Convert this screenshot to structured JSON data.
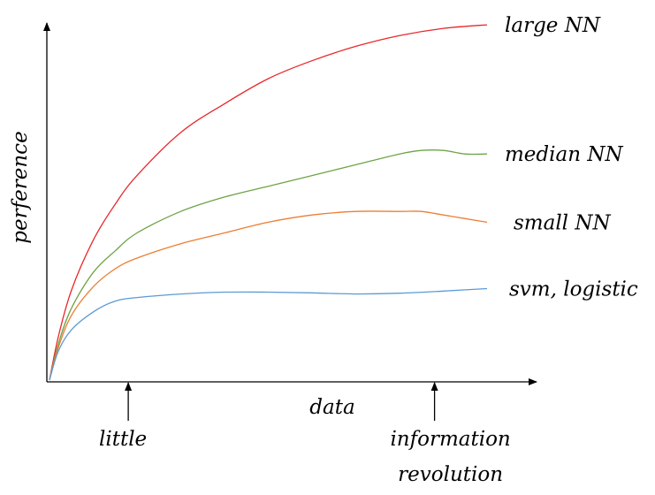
{
  "chart_data": {
    "type": "line",
    "title": "",
    "xlabel": "data",
    "ylabel": "perference",
    "xlim": [
      0,
      100
    ],
    "ylim": [
      0,
      100
    ],
    "grid": false,
    "legend": "none",
    "x_annotations": [
      {
        "label": "little",
        "x": 18
      },
      {
        "label_lines": [
          "information",
          "revolution"
        ],
        "x": 88
      }
    ],
    "series": [
      {
        "name": "large NN",
        "color": "#e8282b",
        "x": [
          0,
          2,
          5,
          10,
          15,
          20,
          30,
          40,
          50,
          60,
          70,
          80,
          90,
          100
        ],
        "y": [
          0,
          12,
          25,
          39,
          49,
          57,
          69,
          77,
          84,
          89,
          93,
          96,
          98,
          99
        ]
      },
      {
        "name": "median NN",
        "color": "#6ea346",
        "x": [
          0,
          2,
          5,
          10,
          15,
          20,
          30,
          40,
          50,
          60,
          70,
          80,
          85,
          90,
          95,
          100
        ],
        "y": [
          0,
          10,
          20,
          30,
          36,
          41,
          47,
          51,
          54,
          57,
          60,
          63,
          64,
          64,
          63,
          63
        ]
      },
      {
        "name": "small NN",
        "color": "#ed7d31",
        "x": [
          0,
          2,
          5,
          10,
          15,
          20,
          30,
          40,
          50,
          60,
          70,
          80,
          85,
          90,
          95,
          100
        ],
        "y": [
          0,
          9,
          18,
          26,
          31,
          34,
          38,
          41,
          44,
          46,
          47,
          47,
          47,
          46,
          45,
          44
        ]
      },
      {
        "name": "svm, logistic",
        "color": "#5b9bd5",
        "x": [
          0,
          2,
          5,
          10,
          15,
          20,
          30,
          40,
          50,
          60,
          70,
          80,
          90,
          100
        ],
        "y": [
          0,
          8,
          14,
          19,
          22,
          23,
          24,
          24.5,
          24.5,
          24.3,
          24,
          24.2,
          24.8,
          25.5
        ]
      }
    ]
  }
}
